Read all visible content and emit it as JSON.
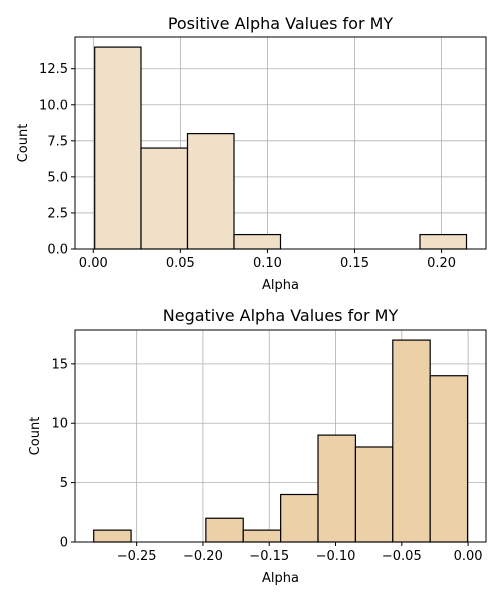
{
  "chart_data": [
    {
      "type": "bar",
      "title": "Positive Alpha Values for MY",
      "xlabel": "Alpha",
      "ylabel": "Count",
      "xlim": [
        -0.0105,
        0.2255
      ],
      "ylim": [
        0,
        14.7
      ],
      "xticks": [
        0.0,
        0.05,
        0.1,
        0.15,
        0.2
      ],
      "xtick_labels": [
        "0.00",
        "0.05",
        "0.10",
        "0.15",
        "0.20"
      ],
      "yticks": [
        0,
        2.5,
        5.0,
        7.5,
        10.0,
        12.5
      ],
      "ytick_labels": [
        "0.0",
        "2.5",
        "5.0",
        "7.5",
        "10.0",
        "12.5"
      ],
      "grid": true,
      "bar_color": "#f0e0c8",
      "edge_color": "#000000",
      "bins": [
        {
          "x0": 0.0008,
          "x1": 0.0274,
          "count": 14
        },
        {
          "x0": 0.0274,
          "x1": 0.0541,
          "count": 7
        },
        {
          "x0": 0.0541,
          "x1": 0.0808,
          "count": 8
        },
        {
          "x0": 0.0808,
          "x1": 0.1075,
          "count": 1
        },
        {
          "x0": 0.1075,
          "x1": 0.1342,
          "count": 0
        },
        {
          "x0": 0.1342,
          "x1": 0.1609,
          "count": 0
        },
        {
          "x0": 0.1609,
          "x1": 0.1876,
          "count": 0
        },
        {
          "x0": 0.1876,
          "x1": 0.2143,
          "count": 1
        }
      ]
    },
    {
      "type": "bar",
      "title": "Negative Alpha Values for MY",
      "xlabel": "Alpha",
      "ylabel": "Count",
      "xlim": [
        -0.2965,
        0.0135
      ],
      "ylim": [
        0,
        17.85
      ],
      "xticks": [
        -0.25,
        -0.2,
        -0.15,
        -0.1,
        -0.05,
        0.0
      ],
      "xtick_labels": [
        "−0.25",
        "−0.20",
        "−0.15",
        "−0.10",
        "−0.05",
        "0.00"
      ],
      "yticks": [
        0,
        5,
        10,
        15
      ],
      "ytick_labels": [
        "0",
        "5",
        "10",
        "15"
      ],
      "grid": true,
      "bar_color": "#ebd0a8",
      "edge_color": "#000000",
      "bins": [
        {
          "x0": -0.2824,
          "x1": -0.2542,
          "count": 1
        },
        {
          "x0": -0.2542,
          "x1": -0.226,
          "count": 0
        },
        {
          "x0": -0.226,
          "x1": -0.1978,
          "count": 0
        },
        {
          "x0": -0.1978,
          "x1": -0.1696,
          "count": 2
        },
        {
          "x0": -0.1696,
          "x1": -0.1414,
          "count": 1
        },
        {
          "x0": -0.1414,
          "x1": -0.1132,
          "count": 4
        },
        {
          "x0": -0.1132,
          "x1": -0.085,
          "count": 9
        },
        {
          "x0": -0.085,
          "x1": -0.0568,
          "count": 8
        },
        {
          "x0": -0.0568,
          "x1": -0.0286,
          "count": 17
        },
        {
          "x0": -0.0286,
          "x1": -0.0004,
          "count": 14
        }
      ]
    }
  ]
}
